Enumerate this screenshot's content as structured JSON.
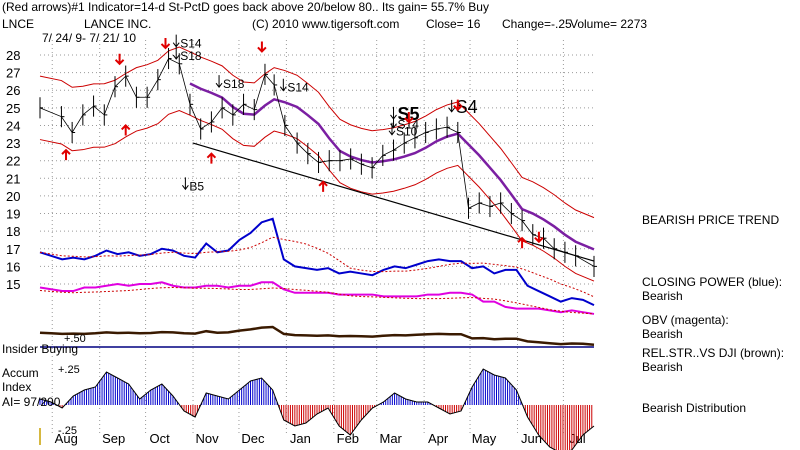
{
  "header": {
    "line1": "(Red arrows)#1 Indicator=14-d St-PctD goes back above 20/below 80.. Its gain= 55.7% Buy",
    "symbol": "LNCE",
    "company": "LANCE INC.",
    "date_range": "7/ 24/ 9- 7/ 21/ 10",
    "copyright": "(C) 2010 www.tigersoft.com",
    "close": "Close=  16",
    "change": "Change=-.25",
    "volume": "Volume= 2273"
  },
  "left_labels": {
    "accum_index": "Accum\nIndex",
    "ai_value": "AI= 97/200",
    "insider": "Insider Buying",
    "plus50": "+.50",
    "plus25": "+.25",
    "minus25": "-.25"
  },
  "side_labels": {
    "trend": "BEARISH PRICE TREND",
    "cp": "CLOSING POWER (blue):\nBearish",
    "obv": "OBV (magenta):\nBearish",
    "rel": "REL.STR..VS DJI (brown):\nBearish",
    "dist": "Bearish Distribution"
  },
  "chart_data": {
    "type": "line",
    "title": "LANCE INC.",
    "x_ticks": [
      "Aug",
      "Sep",
      "Oct",
      "Nov",
      "Dec",
      "Jan",
      "Feb",
      "Mar",
      "Apr",
      "May",
      "Jun",
      "Jul"
    ],
    "y_ticks": [
      28,
      27,
      26,
      25,
      24,
      23,
      22,
      21,
      20,
      19,
      18,
      17,
      16,
      15
    ],
    "ylim": [
      14.5,
      29
    ],
    "price_close": [
      [
        "2009-07-24",
        25.0
      ],
      [
        "2009-08-07",
        24.5
      ],
      [
        "2009-08-14",
        23.6
      ],
      [
        "2009-08-21",
        24.6
      ],
      [
        "2009-08-28",
        25.1
      ],
      [
        "2009-09-04",
        24.6
      ],
      [
        "2009-09-11",
        26.2
      ],
      [
        "2009-09-18",
        26.8
      ],
      [
        "2009-09-25",
        25.6
      ],
      [
        "2009-10-02",
        25.6
      ],
      [
        "2009-10-09",
        26.6
      ],
      [
        "2009-10-16",
        27.8
      ],
      [
        "2009-10-23",
        27.5
      ],
      [
        "2009-10-30",
        25.2
      ],
      [
        "2009-11-06",
        23.8
      ],
      [
        "2009-11-13",
        24.2
      ],
      [
        "2009-11-20",
        25.0
      ],
      [
        "2009-11-27",
        24.6
      ],
      [
        "2009-12-04",
        25.2
      ],
      [
        "2009-12-11",
        24.9
      ],
      [
        "2009-12-18",
        26.9
      ],
      [
        "2009-12-24",
        26.3
      ],
      [
        "2009-12-31",
        24.0
      ],
      [
        "2010-01-08",
        23.0
      ],
      [
        "2010-01-15",
        22.4
      ],
      [
        "2010-01-22",
        21.9
      ],
      [
        "2010-01-29",
        22.0
      ],
      [
        "2010-02-05",
        22.0
      ],
      [
        "2010-02-12",
        22.1
      ],
      [
        "2010-02-19",
        21.8
      ],
      [
        "2010-02-26",
        21.6
      ],
      [
        "2010-03-05",
        22.3
      ],
      [
        "2010-03-12",
        22.6
      ],
      [
        "2010-03-19",
        23.0
      ],
      [
        "2010-03-26",
        23.3
      ],
      [
        "2010-04-02",
        23.6
      ],
      [
        "2010-04-09",
        23.8
      ],
      [
        "2010-04-16",
        23.9
      ],
      [
        "2010-04-23",
        23.6
      ],
      [
        "2010-04-30",
        19.3
      ],
      [
        "2010-05-07",
        19.6
      ],
      [
        "2010-05-14",
        19.4
      ],
      [
        "2010-05-21",
        19.6
      ],
      [
        "2010-05-28",
        19.0
      ],
      [
        "2010-06-04",
        18.6
      ],
      [
        "2010-06-11",
        17.8
      ],
      [
        "2010-06-18",
        17.6
      ],
      [
        "2010-06-25",
        17.0
      ],
      [
        "2010-07-02",
        16.8
      ],
      [
        "2010-07-09",
        16.6
      ],
      [
        "2010-07-21",
        16.0
      ]
    ],
    "annotations": [
      {
        "text": "S14",
        "date": "2009-10-21",
        "y": 28.7
      },
      {
        "text": "S18",
        "date": "2009-10-21",
        "y": 28.0
      },
      {
        "text": "S18",
        "date": "2009-11-18",
        "y": 26.4
      },
      {
        "text": "S14",
        "date": "2009-12-30",
        "y": 26.2
      },
      {
        "text": "S5",
        "date": "2010-03-12",
        "y": 24.6
      },
      {
        "text": "S14",
        "date": "2010-03-12",
        "y": 24.1
      },
      {
        "text": "S10",
        "date": "2010-03-11",
        "y": 23.7
      },
      {
        "text": "S4",
        "date": "2010-04-19",
        "y": 25.0
      },
      {
        "text": "B5",
        "date": "2009-10-27",
        "y": 20.6
      }
    ],
    "buy_arrows": [
      [
        "2009-08-10",
        22.6
      ],
      [
        "2009-09-18",
        24.0
      ],
      [
        "2009-11-13",
        22.4
      ],
      [
        "2010-01-25",
        20.8
      ],
      [
        "2010-06-04",
        17.6
      ]
    ],
    "sell_arrows": [
      [
        "2009-09-14",
        27.5
      ],
      [
        "2009-10-14",
        28.4
      ],
      [
        "2009-12-16",
        28.2
      ],
      [
        "2010-03-22",
        24.2
      ],
      [
        "2010-04-23",
        24.9
      ],
      [
        "2010-06-15",
        17.4
      ]
    ],
    "closing_power": [
      16.8,
      16.6,
      16.4,
      16.5,
      16.4,
      16.6,
      16.9,
      16.7,
      16.8,
      16.6,
      16.7,
      17.0,
      16.9,
      16.6,
      16.5,
      17.3,
      16.8,
      16.9,
      17.5,
      17.9,
      18.5,
      18.7,
      16.4,
      16.0,
      15.9,
      15.8,
      15.9,
      15.6,
      15.7,
      15.6,
      15.5,
      15.8,
      16.0,
      15.9,
      16.1,
      16.3,
      16.4,
      16.3,
      16.3,
      15.9,
      16.0,
      15.6,
      15.8,
      15.8,
      14.9,
      14.6,
      14.3,
      14.0,
      14.2,
      14.1,
      13.8
    ],
    "obv": [
      14.8,
      14.7,
      14.6,
      14.6,
      14.8,
      14.8,
      14.9,
      15.0,
      14.9,
      15.0,
      15.0,
      15.1,
      14.9,
      14.8,
      14.8,
      14.9,
      14.9,
      14.8,
      14.9,
      14.9,
      15.1,
      15.1,
      14.7,
      14.5,
      14.5,
      14.5,
      14.5,
      14.4,
      14.4,
      14.4,
      14.4,
      14.3,
      14.3,
      14.3,
      14.3,
      14.4,
      14.4,
      14.5,
      14.5,
      14.4,
      14.0,
      14.0,
      13.7,
      13.6,
      13.6,
      13.6,
      13.5,
      13.4,
      13.5,
      13.4,
      13.3
    ],
    "accum_index": [
      0.04,
      0.02,
      -0.02,
      0.06,
      0.1,
      0.12,
      0.22,
      0.18,
      0.14,
      0.04,
      0.1,
      0.14,
      0.06,
      -0.04,
      -0.08,
      0.08,
      0.06,
      0.04,
      0.1,
      0.16,
      0.18,
      0.1,
      -0.1,
      -0.14,
      -0.12,
      -0.06,
      -0.02,
      -0.14,
      -0.2,
      -0.1,
      -0.02,
      0.02,
      0.08,
      0.04,
      0.02,
      0.02,
      -0.02,
      -0.06,
      -0.04,
      0.12,
      0.24,
      0.2,
      0.18,
      0.1,
      -0.08,
      -0.2,
      -0.28,
      -0.32,
      -0.3,
      -0.2,
      -0.14
    ]
  }
}
